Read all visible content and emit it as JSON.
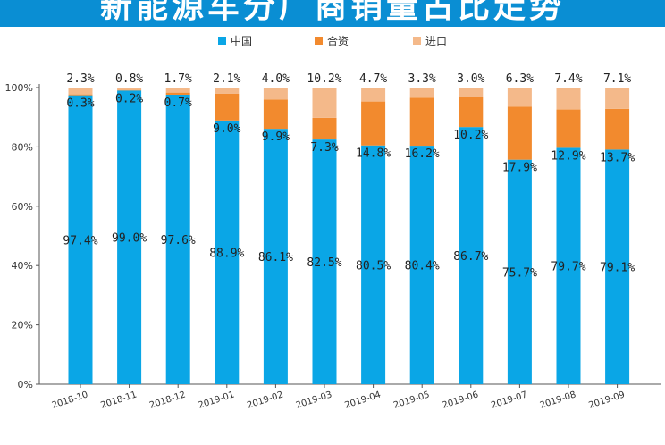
{
  "banner": {
    "title": "新能源车分厂商销量占比走势"
  },
  "chart_data": {
    "type": "bar",
    "stacked": true,
    "categories": [
      "2018-10",
      "2018-11",
      "2018-12",
      "2019-01",
      "2019-02",
      "2019-03",
      "2019-04",
      "2019-05",
      "2019-06",
      "2019-07",
      "2019-08",
      "2019-09"
    ],
    "series": [
      {
        "name": "中国",
        "color": "#0aa6e6",
        "values": [
          97.4,
          99.0,
          97.6,
          88.9,
          86.1,
          82.5,
          80.5,
          80.4,
          86.7,
          75.7,
          79.7,
          79.1
        ]
      },
      {
        "name": "合资",
        "color": "#f28a2e",
        "values": [
          0.3,
          0.2,
          0.7,
          9.0,
          9.9,
          7.3,
          14.8,
          16.2,
          10.2,
          17.9,
          12.9,
          13.7
        ]
      },
      {
        "name": "进口",
        "color": "#f4b98a",
        "values": [
          2.3,
          0.8,
          1.7,
          2.1,
          4.0,
          10.2,
          4.7,
          3.3,
          3.0,
          6.3,
          7.4,
          7.1
        ]
      }
    ],
    "ylim": [
      0,
      100
    ],
    "yticks": [
      "0%",
      "20%",
      "40%",
      "60%",
      "80%",
      "100%"
    ],
    "legend_position": "top-center",
    "grid": false
  }
}
